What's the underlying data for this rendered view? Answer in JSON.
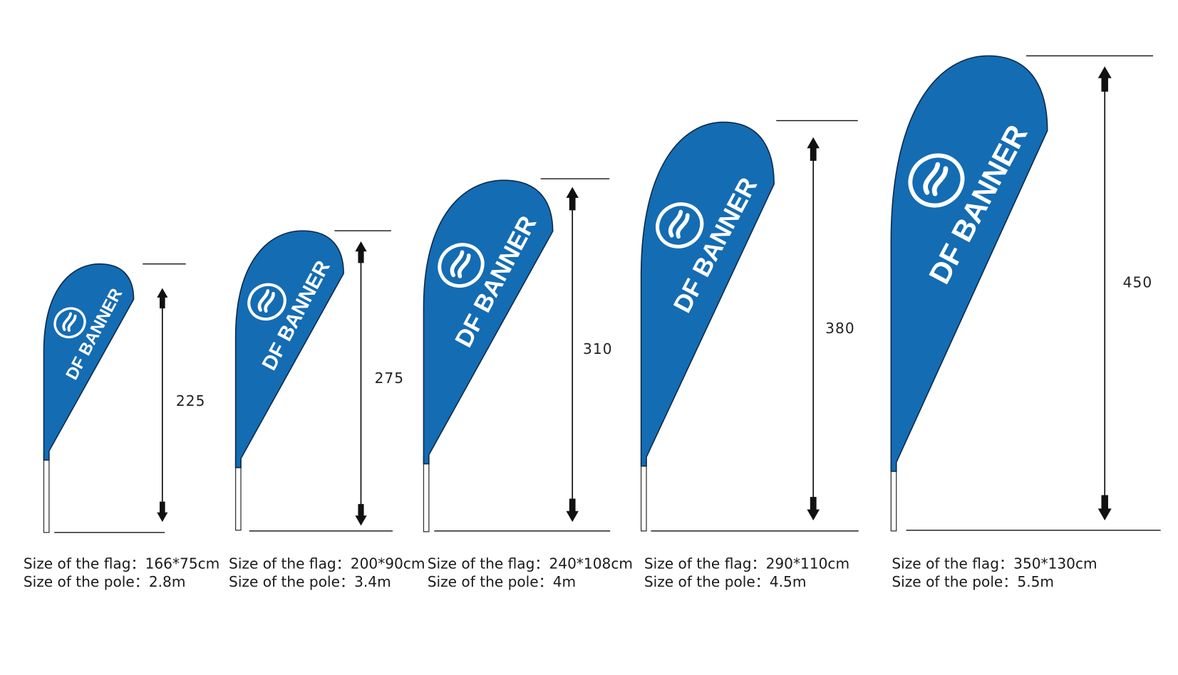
{
  "colors": {
    "flag_fill": "#146cb3",
    "flag_outline": "#0b2a4a",
    "line": "#111111",
    "text": "#1a1a1a"
  },
  "brand_text": "DF BANNER",
  "logo_icon": "circle-flame-logo",
  "flag_label": "Size of the flag：",
  "pole_label": "Size of the pole：",
  "flags": [
    {
      "height": "225",
      "flag_size": "166*75cm",
      "pole_size": "2.8m"
    },
    {
      "height": "275",
      "flag_size": "200*90cm",
      "pole_size": "3.4m"
    },
    {
      "height": "310",
      "flag_size": "240*108cm",
      "pole_size": "4m"
    },
    {
      "height": "380",
      "flag_size": "290*110cm",
      "pole_size": "4.5m"
    },
    {
      "height": "450",
      "flag_size": "350*130cm",
      "pole_size": "5.5m"
    }
  ]
}
